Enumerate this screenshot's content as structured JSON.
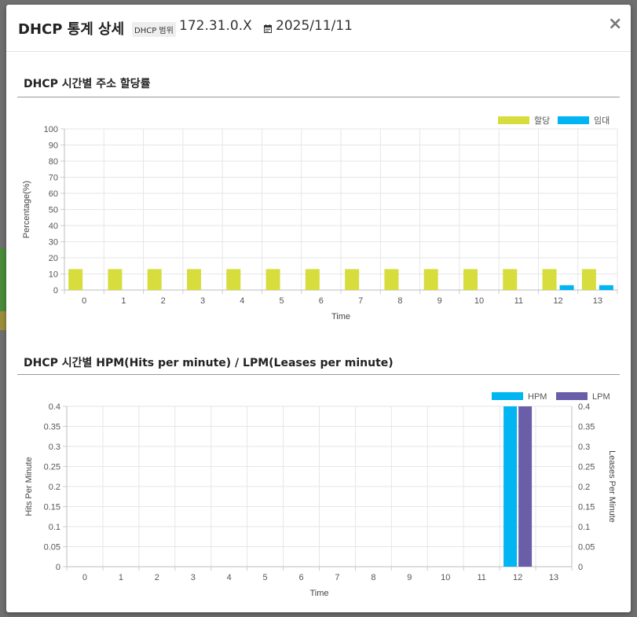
{
  "modal": {
    "title": "DHCP 통계 상세",
    "scope_label": "DHCP 범위",
    "scope_value": "172.31.0.X",
    "date": "2025/11/11",
    "close_label": "×"
  },
  "sections": {
    "allocation_title": "DHCP 시간별 주소 할당률",
    "hpm_title": "DHCP 시간별 HPM(Hits per minute) / LPM(Leases per minute)"
  },
  "chart_data": [
    {
      "type": "bar",
      "categories": [
        "0",
        "1",
        "2",
        "3",
        "4",
        "5",
        "6",
        "7",
        "8",
        "9",
        "10",
        "11",
        "12",
        "13"
      ],
      "series": [
        {
          "name": "할당",
          "color": "#d6dd3d",
          "values": [
            13,
            13,
            13,
            13,
            13,
            13,
            13,
            13,
            13,
            13,
            13,
            13,
            13,
            13
          ]
        },
        {
          "name": "임대",
          "color": "#00b5f2",
          "values": [
            0,
            0,
            0,
            0,
            0,
            0,
            0,
            0,
            0,
            0,
            0,
            0,
            3,
            3
          ]
        }
      ],
      "xlabel": "Time",
      "ylabel": "Percentage(%)",
      "ylim": [
        0,
        100
      ],
      "yticks": [
        "0",
        "10",
        "20",
        "30",
        "40",
        "50",
        "60",
        "70",
        "80",
        "90",
        "100"
      ],
      "grid": true,
      "legend": "top-right"
    },
    {
      "type": "bar",
      "categories": [
        "0",
        "1",
        "2",
        "3",
        "4",
        "5",
        "6",
        "7",
        "8",
        "9",
        "10",
        "11",
        "12",
        "13"
      ],
      "series": [
        {
          "name": "HPM",
          "color": "#00b5f2",
          "values": [
            0,
            0,
            0,
            0,
            0,
            0,
            0,
            0,
            0,
            0,
            0,
            0,
            0.4,
            0
          ]
        },
        {
          "name": "LPM",
          "color": "#6b5ea8",
          "values": [
            0,
            0,
            0,
            0,
            0,
            0,
            0,
            0,
            0,
            0,
            0,
            0,
            0.4,
            0
          ]
        }
      ],
      "xlabel": "Time",
      "ylabel": "Hits Per Minute",
      "y2label": "Leases Per Minute",
      "ylim": [
        0,
        0.4
      ],
      "yticks": [
        "0",
        "0.05",
        "0.1",
        "0.15",
        "0.2",
        "0.25",
        "0.3",
        "0.35",
        "0.4"
      ],
      "grid": true,
      "legend": "top-right"
    }
  ]
}
